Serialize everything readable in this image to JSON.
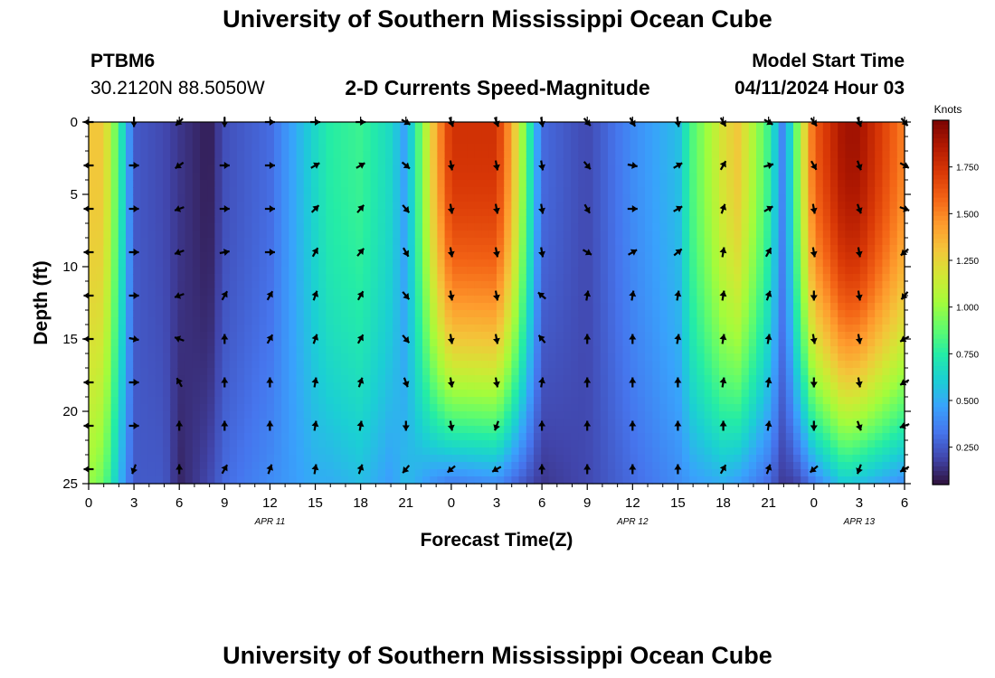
{
  "header": {
    "title": "University of Southern Mississippi Ocean Cube",
    "station": "PTBM6",
    "coords": "30.2120N  88.5050W",
    "subtitle": "2-D Currents Speed-Magnitude",
    "model_label": "Model Start Time",
    "model_time": "04/11/2024 Hour 03"
  },
  "footer": {
    "title": "University of Southern Mississippi Ocean Cube"
  },
  "chart_data": {
    "type": "heatmap",
    "title": "2-D Currents Speed-Magnitude",
    "xlabel": "Forecast Time(Z)",
    "ylabel": "Depth (ft)",
    "x_ticks": [
      "0",
      "3",
      "6",
      "9",
      "12",
      "15",
      "18",
      "21",
      "0",
      "3",
      "6",
      "9",
      "12",
      "15",
      "18",
      "21",
      "0",
      "3",
      "6"
    ],
    "x_range_hours": [
      0,
      54
    ],
    "y_ticks": [
      "0",
      "5",
      "10",
      "15",
      "20",
      "25"
    ],
    "y_range": [
      0,
      25
    ],
    "day_labels": [
      {
        "label": "APR 11",
        "hour": 12
      },
      {
        "label": "APR 12",
        "hour": 36
      },
      {
        "label": "APR 13",
        "hour": 51
      }
    ],
    "colorbar": {
      "unit": "Knots",
      "ticks": [
        "0.250",
        "0.500",
        "0.750",
        "1.000",
        "1.250",
        "1.500",
        "1.750"
      ],
      "range": [
        0.05,
        2.0
      ],
      "colors": [
        "#30123b",
        "#4145ab",
        "#4675ed",
        "#39a2fc",
        "#1bcfd4",
        "#24eca6",
        "#61fc6c",
        "#a4fc3b",
        "#d1e834",
        "#f3c63a",
        "#fe9b2d",
        "#f36315",
        "#d93806",
        "#b11901",
        "#7a0403"
      ]
    },
    "speed_profile": {
      "hours": [
        0,
        1,
        2,
        3,
        5,
        6,
        8,
        9,
        12,
        15,
        16,
        18,
        20,
        21,
        23,
        24,
        27,
        28,
        30,
        33,
        36,
        39,
        40,
        42,
        43,
        45,
        46,
        47,
        48,
        50,
        51,
        54
      ],
      "surface": [
        1.3,
        1.3,
        0.8,
        0.25,
        0.2,
        0.15,
        0.08,
        0.22,
        0.3,
        0.65,
        0.75,
        0.8,
        0.65,
        0.45,
        1.4,
        1.75,
        1.75,
        1.4,
        0.3,
        0.2,
        0.4,
        0.55,
        0.85,
        1.2,
        1.3,
        0.8,
        0.35,
        1.0,
        1.6,
        1.9,
        1.9,
        1.5
      ],
      "bottom": [
        1.0,
        0.9,
        0.55,
        0.25,
        0.25,
        0.1,
        0.2,
        0.3,
        0.4,
        0.5,
        0.5,
        0.55,
        0.45,
        0.55,
        0.4,
        0.35,
        0.4,
        0.3,
        0.15,
        0.2,
        0.3,
        0.4,
        0.45,
        0.5,
        0.45,
        0.3,
        0.15,
        0.2,
        0.35,
        0.6,
        0.55,
        0.4
      ]
    },
    "vectors_x_hours": [
      0,
      3,
      6,
      9,
      12,
      15,
      18,
      21,
      24,
      27,
      30,
      33,
      36,
      39,
      42,
      45,
      48,
      51,
      54
    ],
    "vectors_y_ft": [
      0,
      3,
      6,
      9,
      12,
      15,
      18,
      21,
      24
    ],
    "vector_directions_deg": [
      [
        270,
        180,
        225,
        180,
        90,
        90,
        90,
        120,
        160,
        160,
        170,
        140,
        150,
        170,
        150,
        120,
        145,
        160,
        140
      ],
      [
        270,
        90,
        235,
        90,
        90,
        60,
        60,
        130,
        170,
        170,
        170,
        140,
        100,
        60,
        30,
        75,
        150,
        160,
        120
      ],
      [
        270,
        90,
        250,
        90,
        90,
        45,
        40,
        140,
        170,
        170,
        170,
        150,
        90,
        60,
        20,
        60,
        170,
        160,
        110
      ],
      [
        270,
        90,
        250,
        80,
        90,
        30,
        40,
        150,
        170,
        170,
        170,
        120,
        60,
        50,
        10,
        30,
        170,
        170,
        230
      ],
      [
        270,
        90,
        250,
        30,
        30,
        20,
        30,
        140,
        170,
        170,
        310,
        10,
        10,
        10,
        10,
        20,
        180,
        170,
        220
      ],
      [
        270,
        100,
        290,
        0,
        30,
        20,
        30,
        140,
        170,
        170,
        320,
        0,
        0,
        10,
        10,
        10,
        170,
        170,
        240
      ],
      [
        270,
        90,
        330,
        0,
        0,
        10,
        20,
        160,
        170,
        170,
        10,
        0,
        0,
        0,
        10,
        10,
        180,
        170,
        240
      ],
      [
        270,
        90,
        0,
        0,
        0,
        10,
        10,
        180,
        170,
        200,
        0,
        0,
        0,
        0,
        0,
        10,
        180,
        160,
        250
      ],
      [
        270,
        200,
        0,
        30,
        20,
        10,
        20,
        220,
        230,
        240,
        0,
        0,
        0,
        0,
        30,
        20,
        230,
        200,
        240
      ]
    ]
  }
}
